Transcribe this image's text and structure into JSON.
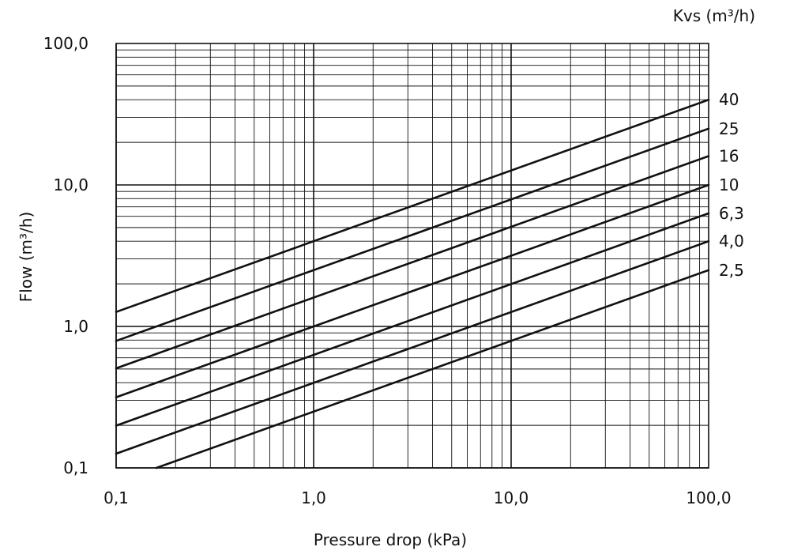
{
  "chart_data": {
    "type": "line",
    "title": "",
    "xlabel": "Pressure drop (kPa)",
    "ylabel": "Flow  (m³/h)",
    "x_scale": "log",
    "y_scale": "log",
    "xlim": [
      0.1,
      100
    ],
    "ylim": [
      0.1,
      100
    ],
    "grid": true,
    "x_ticks": [
      {
        "value": 0.1,
        "label": "0,1"
      },
      {
        "value": 1,
        "label": "1,0"
      },
      {
        "value": 10,
        "label": "10,0"
      },
      {
        "value": 100,
        "label": "100,0"
      }
    ],
    "y_ticks": [
      {
        "value": 0.1,
        "label": "0,1"
      },
      {
        "value": 1,
        "label": "1,0"
      },
      {
        "value": 10,
        "label": "10,0"
      },
      {
        "value": 100,
        "label": "100,0"
      }
    ],
    "legend_title": "Kvs (m³/h)",
    "series": [
      {
        "name": "40",
        "kvs": 40,
        "x": [
          0.1,
          100
        ],
        "y": [
          1.265,
          40
        ]
      },
      {
        "name": "25",
        "kvs": 25,
        "x": [
          0.1,
          100
        ],
        "y": [
          0.79,
          25
        ]
      },
      {
        "name": "16",
        "kvs": 16,
        "x": [
          0.1,
          100
        ],
        "y": [
          0.506,
          16
        ]
      },
      {
        "name": "10",
        "kvs": 10,
        "x": [
          0.1,
          100
        ],
        "y": [
          0.316,
          10
        ]
      },
      {
        "name": "6,3",
        "kvs": 6.3,
        "x": [
          0.1,
          100
        ],
        "y": [
          0.199,
          6.3
        ]
      },
      {
        "name": "4,0",
        "kvs": 4.0,
        "x": [
          0.1,
          100
        ],
        "y": [
          0.126,
          4.0
        ]
      },
      {
        "name": "2,5",
        "kvs": 2.5,
        "x": [
          0.16,
          100
        ],
        "y": [
          0.1,
          2.5
        ]
      }
    ]
  }
}
